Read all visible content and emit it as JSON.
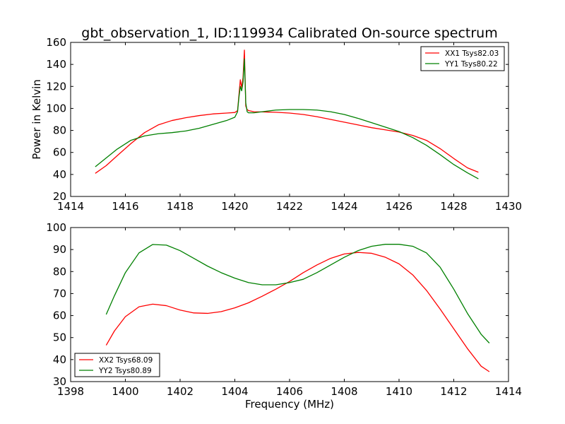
{
  "figure": {
    "title": "gbt_observation_1, ID:119934 Calibrated On-source spectrum"
  },
  "chart_data": [
    {
      "type": "line",
      "title": "gbt_observation_1, ID:119934 Calibrated On-source spectrum",
      "xlabel": "",
      "ylabel": "Power in Kelvin",
      "xlim": [
        1414,
        1430
      ],
      "ylim": [
        20,
        160
      ],
      "xticks": [
        1414,
        1416,
        1418,
        1420,
        1422,
        1424,
        1426,
        1428,
        1430
      ],
      "yticks": [
        20,
        40,
        60,
        80,
        100,
        120,
        140,
        160
      ],
      "grid": false,
      "legend": "top-right",
      "series": [
        {
          "name": "XX1 Tsys82.03",
          "color": "#ff0000",
          "x": [
            1414.9,
            1415.3,
            1415.7,
            1416.2,
            1416.7,
            1417.2,
            1417.7,
            1418.2,
            1418.7,
            1419.2,
            1419.7,
            1420.0,
            1420.1,
            1420.15,
            1420.2,
            1420.25,
            1420.3,
            1420.35,
            1420.4,
            1420.45,
            1420.5,
            1420.7,
            1421.0,
            1421.5,
            1422.0,
            1422.5,
            1423.0,
            1423.5,
            1424.0,
            1424.5,
            1425.0,
            1425.5,
            1426.0,
            1426.5,
            1427.0,
            1427.5,
            1428.0,
            1428.5,
            1428.9
          ],
          "values": [
            41,
            48,
            57,
            68,
            78,
            85,
            89,
            91.5,
            93.5,
            95,
            95.8,
            96.3,
            98,
            112,
            126,
            119,
            128,
            153,
            102,
            99,
            98,
            97,
            96.8,
            96.5,
            95.8,
            94.5,
            92.5,
            90,
            87.5,
            85,
            82.5,
            80.5,
            78.5,
            75.5,
            71,
            63.5,
            54.5,
            46,
            42
          ]
        },
        {
          "name": "YY1 Tsys80.22",
          "color": "#008000",
          "x": [
            1414.9,
            1415.3,
            1415.7,
            1416.2,
            1416.7,
            1417.2,
            1417.7,
            1418.2,
            1418.7,
            1419.2,
            1419.7,
            1420.0,
            1420.1,
            1420.15,
            1420.2,
            1420.25,
            1420.3,
            1420.35,
            1420.4,
            1420.45,
            1420.5,
            1420.7,
            1421.0,
            1421.5,
            1422.0,
            1422.5,
            1423.0,
            1423.5,
            1424.0,
            1424.5,
            1425.0,
            1425.5,
            1426.0,
            1426.5,
            1427.0,
            1427.5,
            1428.0,
            1428.5,
            1428.9
          ],
          "values": [
            47,
            55,
            63,
            71,
            75,
            77,
            78,
            79.5,
            82,
            85.5,
            89,
            92,
            97,
            110,
            120,
            116,
            124,
            145,
            105,
            97,
            96,
            96,
            97,
            98.5,
            99,
            99,
            98.5,
            97,
            94.5,
            91,
            87,
            83,
            79,
            73.5,
            66.5,
            58,
            49,
            41.5,
            36
          ]
        }
      ]
    },
    {
      "type": "line",
      "title": "",
      "xlabel": "Frequency (MHz)",
      "ylabel": "",
      "xlim": [
        1398,
        1414
      ],
      "ylim": [
        30,
        100
      ],
      "xticks": [
        1398,
        1400,
        1402,
        1404,
        1406,
        1408,
        1410,
        1412,
        1414
      ],
      "yticks": [
        30,
        40,
        50,
        60,
        70,
        80,
        90,
        100
      ],
      "grid": false,
      "legend": "bottom-left",
      "series": [
        {
          "name": "XX2 Tsys68.09",
          "color": "#ff0000",
          "x": [
            1399.3,
            1399.6,
            1400.0,
            1400.5,
            1401.0,
            1401.5,
            1402.0,
            1402.5,
            1403.0,
            1403.5,
            1404.0,
            1404.5,
            1405.0,
            1405.5,
            1406.0,
            1406.5,
            1407.0,
            1407.5,
            1408.0,
            1408.5,
            1409.0,
            1409.5,
            1410.0,
            1410.5,
            1411.0,
            1411.5,
            1412.0,
            1412.5,
            1413.0,
            1413.3
          ],
          "values": [
            46.5,
            53,
            59.5,
            64,
            65.2,
            64.5,
            62.5,
            61.2,
            61,
            61.8,
            63.5,
            65.8,
            68.8,
            72,
            75.5,
            79.5,
            83,
            86,
            88,
            88.7,
            88.3,
            86.5,
            83.5,
            78.5,
            71.5,
            63,
            54,
            45,
            37,
            34.5
          ]
        },
        {
          "name": "YY2 Tsys80.89",
          "color": "#008000",
          "x": [
            1399.3,
            1399.6,
            1400.0,
            1400.5,
            1401.0,
            1401.5,
            1402.0,
            1402.5,
            1403.0,
            1403.5,
            1404.0,
            1404.5,
            1405.0,
            1405.5,
            1406.0,
            1406.5,
            1407.0,
            1407.5,
            1408.0,
            1408.5,
            1409.0,
            1409.5,
            1410.0,
            1410.5,
            1411.0,
            1411.5,
            1412.0,
            1412.5,
            1413.0,
            1413.3
          ],
          "values": [
            60.5,
            69,
            79.5,
            88.5,
            92.3,
            92,
            89.5,
            86,
            82.5,
            79.5,
            77,
            75,
            74,
            74,
            75,
            76.5,
            79.5,
            83,
            86.5,
            89.5,
            91.5,
            92.4,
            92.4,
            91.5,
            88.5,
            82,
            72,
            61,
            51.5,
            47.5
          ]
        }
      ]
    }
  ]
}
